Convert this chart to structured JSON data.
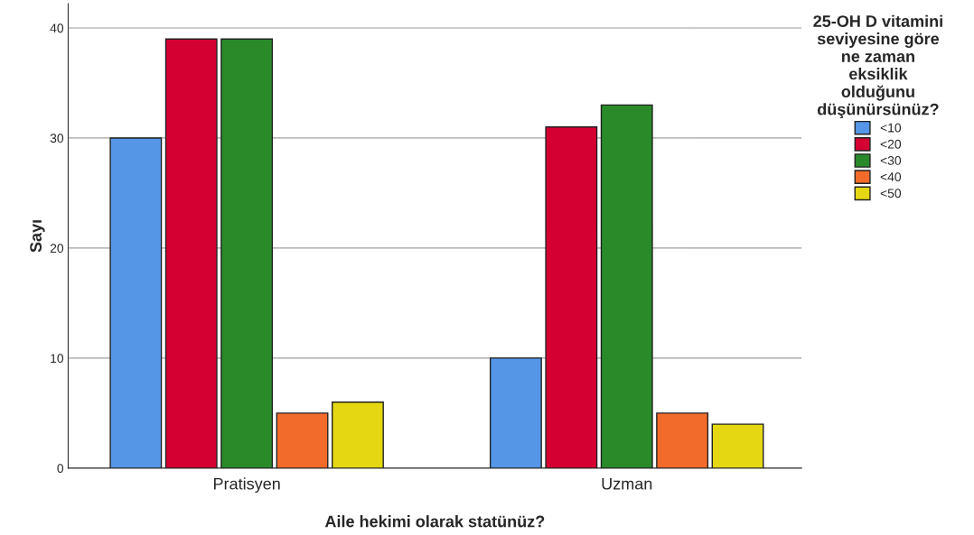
{
  "chart_data": {
    "type": "bar",
    "xlabel": "Aile hekimi olarak statünüz?",
    "ylabel": "Sayı",
    "legend_title": "25-OH D vitamini\nseviyesine göre\nne zaman\neksiklik\nolduğunu\ndüşünürsünüz?",
    "categories": [
      "Pratisyen",
      "Uzman"
    ],
    "series": [
      {
        "name": "<10",
        "color": "#5596e6",
        "values": [
          30,
          10
        ]
      },
      {
        "name": "<20",
        "color": "#d50032",
        "values": [
          39,
          31
        ]
      },
      {
        "name": "<30",
        "color": "#2a8a2a",
        "values": [
          39,
          33
        ]
      },
      {
        "name": "<40",
        "color": "#f26b2a",
        "values": [
          5,
          5
        ]
      },
      {
        "name": "<50",
        "color": "#e5d812",
        "values": [
          6,
          4
        ]
      }
    ],
    "ylim": [
      0,
      42.2
    ],
    "yticks": [
      0,
      10,
      20,
      30,
      40
    ],
    "grid": "y",
    "legend": "right"
  }
}
